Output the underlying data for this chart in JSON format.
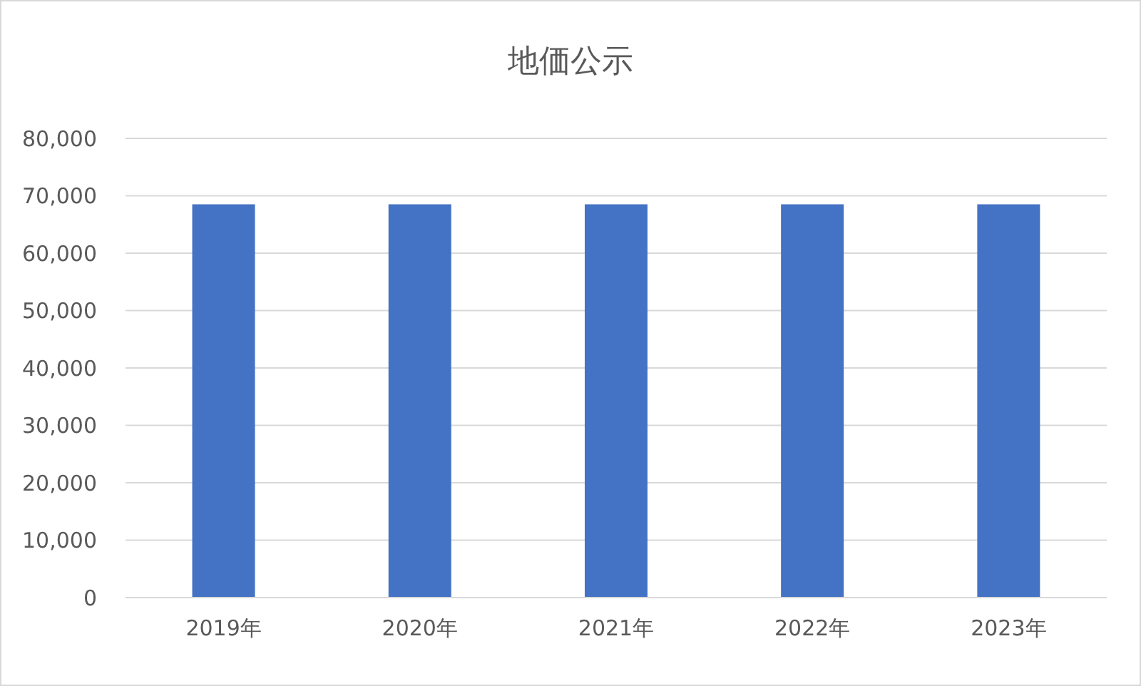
{
  "chart_data": {
    "type": "bar",
    "title": "地価公示",
    "categories": [
      "2019年",
      "2020年",
      "2021年",
      "2022年",
      "2023年"
    ],
    "values": [
      68500,
      68500,
      68500,
      68500,
      68500
    ],
    "color": "#4472c4",
    "ylim": [
      0,
      80000
    ],
    "yticks": [
      0,
      {
        "value": 10000,
        "label": "10,000"
      },
      {
        "value": 20000,
        "label": "20,000"
      },
      {
        "value": 30000,
        "label": "30,000"
      },
      {
        "value": 40000,
        "label": "40,000"
      },
      {
        "value": 50000,
        "label": "50,000"
      },
      {
        "value": 60000,
        "label": "60,000"
      },
      {
        "value": 70000,
        "label": "70,000"
      },
      {
        "value": 80000,
        "label": "80,000"
      }
    ],
    "grid": "y"
  }
}
